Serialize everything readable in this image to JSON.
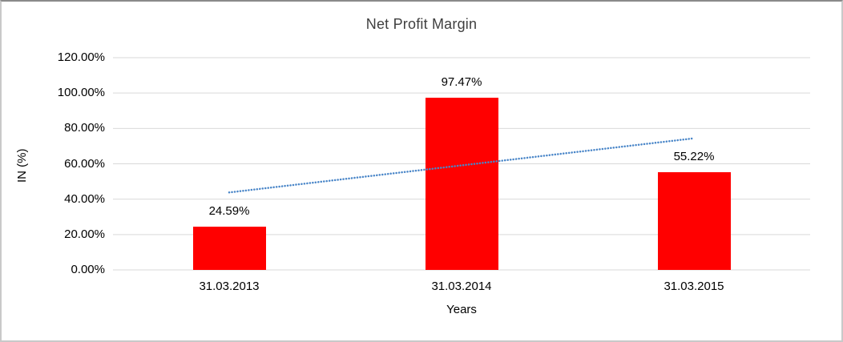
{
  "chart_data": {
    "type": "bar",
    "title": "Net Profit Margin",
    "xlabel": "Years",
    "ylabel": "IN (%)",
    "categories": [
      "31.03.2013",
      "31.03.2014",
      "31.03.2015"
    ],
    "values": [
      24.59,
      97.47,
      55.22
    ],
    "data_labels": [
      "24.59%",
      "97.47%",
      "55.22%"
    ],
    "y_ticks": [
      "0.00%",
      "20.00%",
      "40.00%",
      "60.00%",
      "80.00%",
      "100.00%",
      "120.00%"
    ],
    "y_tick_values": [
      0,
      20,
      40,
      60,
      80,
      100,
      120
    ],
    "ylim": [
      0,
      120
    ],
    "grid": true,
    "legend": "none",
    "bar_color": "#FF0000",
    "gridline_color": "#D9D9D9",
    "axis_line_color": "#D9D9D9",
    "text_color": "#000000",
    "title_color": "#3F3F3F",
    "trendline": {
      "type": "linear",
      "style": "dotted",
      "color": "#4A86C8",
      "start_value": 43.8,
      "end_value": 74.4
    }
  }
}
